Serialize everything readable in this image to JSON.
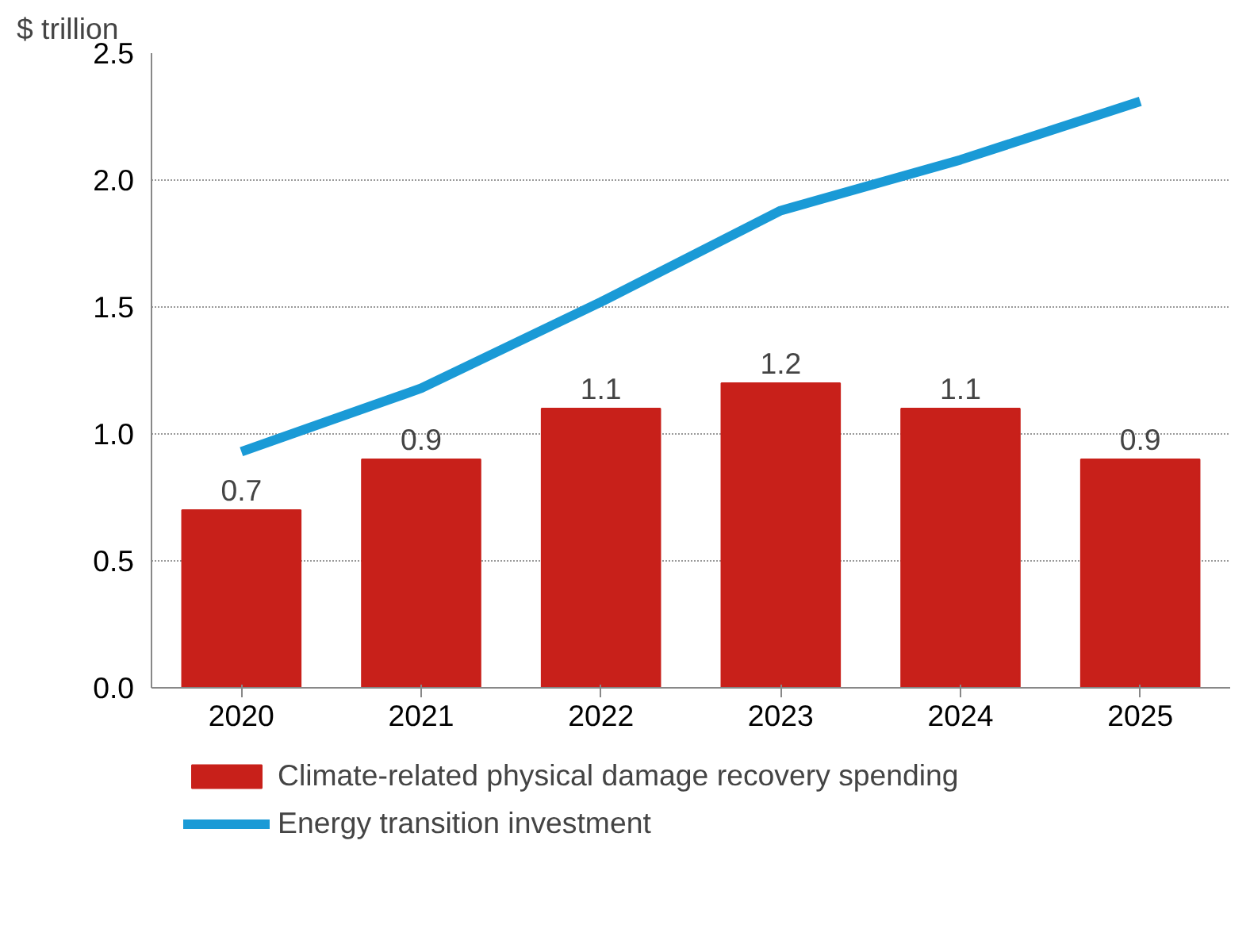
{
  "chart_data": {
    "type": "bar",
    "ylabel": "$ trillion",
    "categories": [
      "2020",
      "2021",
      "2022",
      "2023",
      "2024",
      "2025"
    ],
    "series": [
      {
        "name": "Climate-related physical damage recovery spending",
        "color": "#c8201a",
        "values": [
          0.7,
          0.9,
          1.1,
          1.2,
          1.1,
          0.9
        ],
        "value_labels": [
          "0.7",
          "0.9",
          "1.1",
          "1.2",
          "1.1",
          "0.9"
        ]
      },
      {
        "name": "Energy transition investment",
        "color": "#1a9ad6",
        "type": "line",
        "values": [
          0.93,
          1.18,
          1.52,
          1.88,
          2.08,
          2.31
        ]
      }
    ],
    "ylim": [
      0,
      2.5
    ],
    "yticks": [
      {
        "value": 0,
        "label": "0.0"
      },
      {
        "value": 0.5,
        "label": "0.5"
      },
      {
        "value": 1,
        "label": "1.0"
      },
      {
        "value": 1.5,
        "label": "1.5"
      },
      {
        "value": 2,
        "label": "2.0"
      },
      {
        "value": 2.5,
        "label": "2.5"
      }
    ],
    "grid": "y",
    "legend": "bottom",
    "marker": "none",
    "line_style": "solid"
  }
}
